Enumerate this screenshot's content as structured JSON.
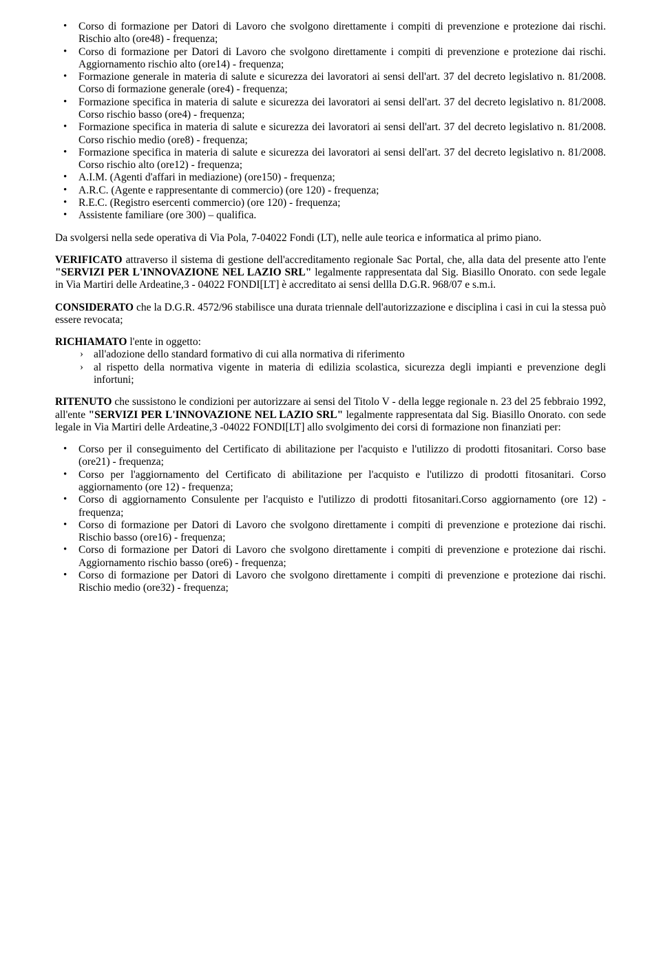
{
  "topList": [
    "Corso di formazione per Datori di Lavoro che svolgono direttamente i compiti di prevenzione e protezione dai rischi. Rischio alto (ore48) - frequenza;",
    "Corso di formazione per Datori di Lavoro che svolgono direttamente i compiti di prevenzione e protezione dai rischi. Aggiornamento rischio alto (ore14) - frequenza;",
    "Formazione generale in materia di salute  e sicurezza dei lavoratori ai sensi dell'art. 37 del decreto legislativo n. 81/2008. Corso di formazione generale (ore4) - frequenza;",
    "Formazione specifica in materia di salute  e sicurezza dei lavoratori ai sensi dell'art. 37 del decreto legislativo n. 81/2008. Corso rischio basso (ore4) - frequenza;",
    "Formazione specifica in materia di salute  e sicurezza dei lavoratori ai sensi dell'art. 37 del decreto legislativo n. 81/2008. Corso rischio medio (ore8) - frequenza;",
    "Formazione specifica in materia di salute  e sicurezza dei lavoratori ai sensi dell'art. 37 del decreto legislativo n. 81/2008. Corso rischio alto (ore12) - frequenza;",
    "A.I.M. (Agenti d'affari in mediazione) (ore150) - frequenza;",
    "A.R.C. (Agente e rappresentante di commercio) (ore 120) - frequenza;",
    "R.E.C. (Registro esercenti commercio) (ore 120) - frequenza;",
    "Assistente familiare (ore 300) – qualifica."
  ],
  "paraSvolgersi": "Da svolgersi nella sede operativa di Via Pola, 7-04022 Fondi (LT), nelle aule teorica e informatica al primo piano.",
  "verificato": {
    "strongLead": "VERIFICATO",
    "text1": " attraverso il sistema di gestione dell'accreditamento regionale Sac Portal, che, alla data del presente atto l'ente ",
    "strongEnte": "\"SERVIZI PER L'INNOVAZIONE NEL LAZIO SRL\"",
    "text2": " legalmente rappresentata dal Sig. Biasillo Onorato. con sede legale in Via Martiri delle Ardeatine,3 - 04022 FONDI[LT] è accreditato ai sensi dellla D.G.R. 968/07 e s.m.i."
  },
  "considerato": {
    "strongLead": "CONSIDERATO",
    "text": " che la D.G.R. 4572/96 stabilisce una durata triennale dell'autorizzazione e disciplina i casi in cui la stessa può essere revocata;"
  },
  "richiamato": {
    "strongLead": "RICHIAMATO",
    "text": " l'ente in oggetto:",
    "items": [
      "all'adozione dello standard formativo di cui alla normativa di riferimento",
      "al rispetto della normativa vigente in materia di edilizia scolastica, sicurezza degli impianti e prevenzione degli infortuni;"
    ]
  },
  "ritenuto": {
    "strongLead": "RITENUTO",
    "text1": " che sussistono le condizioni per autorizzare ai sensi del Titolo V - della legge regionale n. 23 del 25 febbraio 1992, all'ente ",
    "strongEnte": "\"SERVIZI PER L'INNOVAZIONE NEL LAZIO SRL\"",
    "text2": " legalmente rappresentata dal Sig. Biasillo Onorato. con sede legale in Via Martiri delle Ardeatine,3 -04022 FONDI[LT] allo svolgimento dei corsi di formazione non finanziati per:"
  },
  "bottomList": [
    "Corso per il conseguimento del Certificato di abilitazione per l'acquisto e l'utilizzo di prodotti fitosanitari. Corso base (ore21) - frequenza;",
    "Corso per l'aggiornamento del Certificato di abilitazione per l'acquisto e l'utilizzo di prodotti fitosanitari. Corso aggiornamento (ore 12) - frequenza;",
    "Corso di aggiornamento Consulente per l'acquisto e l'utilizzo di prodotti fitosanitari.Corso aggiornamento (ore 12) - frequenza;",
    "Corso di formazione per Datori di Lavoro che svolgono direttamente i compiti di prevenzione e protezione dai rischi. Rischio basso (ore16) - frequenza;",
    "Corso di formazione per Datori di Lavoro che svolgono direttamente i compiti di prevenzione e protezione dai rischi. Aggiornamento rischio basso (ore6) - frequenza;",
    "Corso di formazione per Datori di Lavoro che svolgono direttamente i compiti di prevenzione e protezione dai rischi. Rischio medio (ore32) - frequenza;"
  ]
}
